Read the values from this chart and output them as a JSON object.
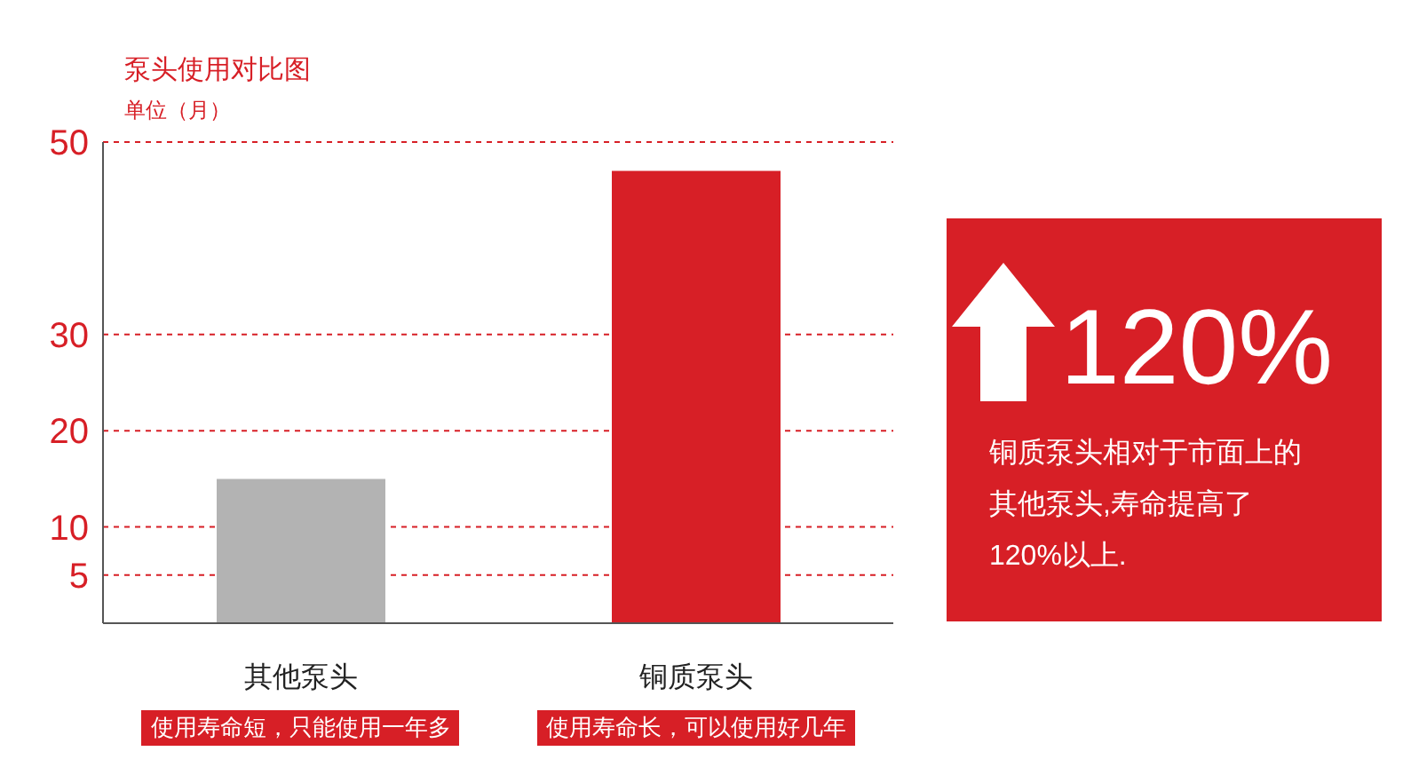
{
  "chart_data": [
    {
      "type": "bar",
      "title": "泵头使用对比图",
      "subtitle": "单位（月）",
      "categories": [
        "其他泵头",
        "铜质泵头"
      ],
      "values": [
        15,
        47
      ],
      "colors": [
        "#b3b3b3",
        "#d71f26"
      ],
      "ylim": [
        0,
        50
      ],
      "yticks": [
        5,
        10,
        20,
        30,
        50
      ],
      "grid": "y",
      "annotations": [
        "使用寿命短，只能使用一年多",
        "使用寿命长，可以使用好几年"
      ]
    },
    {
      "type": "other",
      "annotations": [
        "120%",
        "铜质泵头相对于市面上的其他泵头,寿命提高了120%以上."
      ]
    }
  ]
}
